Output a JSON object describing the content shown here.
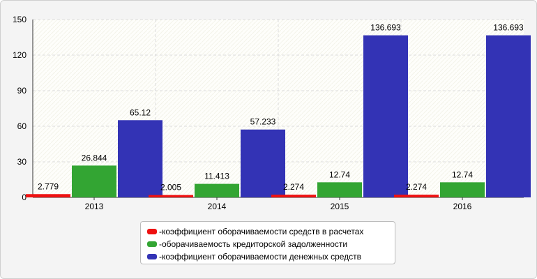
{
  "chart_data": {
    "type": "bar",
    "categories": [
      "2013",
      "2014",
      "2015",
      "2016"
    ],
    "series": [
      {
        "name": "коэффициент оборачиваемости средств в расчетах",
        "color": "#ee1111",
        "values": [
          2.779,
          2.005,
          2.274,
          2.274
        ],
        "labels": [
          "2.779",
          "2.005",
          "2.274",
          "2.274"
        ]
      },
      {
        "name": "оборачиваемость кредиторской задолженности",
        "color": "#33a533",
        "values": [
          26.844,
          11.413,
          12.74,
          12.74
        ],
        "labels": [
          "26.844",
          "11.413",
          "12.74",
          "12.74"
        ]
      },
      {
        "name": "коэффициент оборачиваемости денежных средств",
        "color": "#3333b5",
        "values": [
          65.12,
          57.233,
          136.693,
          136.693
        ],
        "labels": [
          "65.12",
          "57.233",
          "136.693",
          "136.693"
        ]
      }
    ],
    "yticks": [
      "0",
      "30",
      "60",
      "90",
      "120",
      "150"
    ],
    "ylim": [
      0,
      150
    ],
    "grid": true,
    "legend_position": "bottom",
    "legend_prefix": "- "
  }
}
